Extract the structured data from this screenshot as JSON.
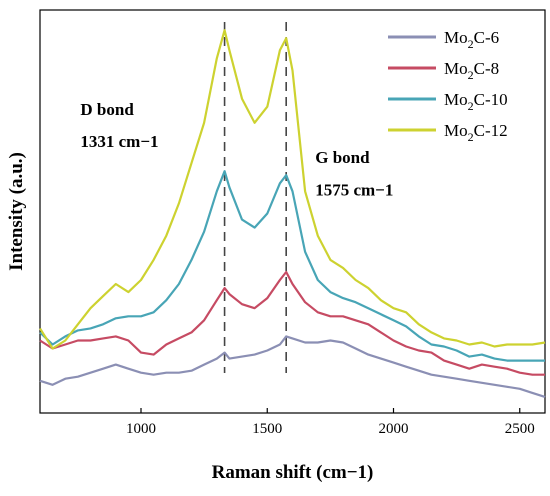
{
  "chart_data": {
    "type": "line",
    "xlabel": "Raman shift (cm−1)",
    "ylabel": "Intensity (a.u.)",
    "xlim": [
      600,
      2600
    ],
    "ylim": [
      0,
      100
    ],
    "xticks": [
      1000,
      1500,
      2000,
      2500
    ],
    "xtick_labels": [
      "1000",
      "1500",
      "2000",
      "2500"
    ],
    "grid": false,
    "legend_position": "top-right",
    "reference_lines": [
      1331,
      1575
    ],
    "annotations": [
      {
        "text": "D bond",
        "x": 760,
        "y": 74
      },
      {
        "text": "1331 cm−1",
        "x": 760,
        "y": 66
      },
      {
        "text": "G bond",
        "x": 1690,
        "y": 62
      },
      {
        "text": "1575 cm−1",
        "x": 1690,
        "y": 54
      }
    ],
    "series": [
      {
        "name": "Mo2C-6",
        "name_base": "Mo",
        "name_sub": "2",
        "name_rest": "C-6",
        "color": "#8b8fb4",
        "x": [
          600,
          650,
          700,
          750,
          800,
          850,
          900,
          950,
          1000,
          1050,
          1100,
          1150,
          1200,
          1250,
          1300,
          1331,
          1350,
          1400,
          1450,
          1500,
          1550,
          1575,
          1600,
          1650,
          1700,
          1750,
          1800,
          1850,
          1900,
          1950,
          2000,
          2050,
          2100,
          2150,
          2200,
          2250,
          2300,
          2350,
          2400,
          2450,
          2500,
          2550,
          2600
        ],
        "y": [
          8,
          7,
          8.5,
          9,
          10,
          11,
          12,
          11,
          10,
          9.5,
          10,
          10,
          10.5,
          12,
          13.5,
          15,
          13.5,
          14,
          14.5,
          15.5,
          17,
          19,
          18.5,
          17.5,
          17.5,
          18,
          17.5,
          16,
          14.5,
          13.5,
          12.5,
          11.5,
          10.5,
          9.5,
          9,
          8.5,
          8,
          7.5,
          7,
          6.5,
          6,
          5,
          4
        ]
      },
      {
        "name": "Mo2C-8",
        "name_base": "Mo",
        "name_sub": "2",
        "name_rest": "C-8",
        "color": "#c64b63",
        "x": [
          600,
          650,
          700,
          750,
          800,
          850,
          900,
          950,
          1000,
          1050,
          1100,
          1150,
          1200,
          1250,
          1300,
          1331,
          1350,
          1400,
          1450,
          1500,
          1550,
          1575,
          1600,
          1650,
          1700,
          1750,
          1800,
          1850,
          1900,
          1950,
          2000,
          2050,
          2100,
          2150,
          2200,
          2250,
          2300,
          2350,
          2400,
          2450,
          2500,
          2550,
          2600
        ],
        "y": [
          18,
          16,
          17,
          18,
          18,
          18.5,
          19,
          18,
          15,
          14.5,
          17,
          18.5,
          20,
          23,
          28,
          31,
          29.5,
          27,
          26,
          28.5,
          33,
          35,
          32,
          27.5,
          25,
          24,
          24,
          23,
          22,
          20,
          18,
          16.5,
          15.5,
          15,
          13,
          12,
          11,
          12,
          11.5,
          11,
          10,
          9.5,
          9.5
        ]
      },
      {
        "name": "Mo2C-10",
        "name_base": "Mo",
        "name_sub": "2",
        "name_rest": "C-10",
        "color": "#48a5b6",
        "x": [
          600,
          650,
          700,
          750,
          800,
          850,
          900,
          950,
          1000,
          1050,
          1100,
          1150,
          1200,
          1250,
          1300,
          1331,
          1350,
          1400,
          1450,
          1500,
          1550,
          1575,
          1600,
          1650,
          1700,
          1750,
          1800,
          1850,
          1900,
          1950,
          2000,
          2050,
          2100,
          2150,
          2200,
          2250,
          2300,
          2350,
          2400,
          2450,
          2500,
          2550,
          2600
        ],
        "y": [
          20,
          17,
          19,
          20.5,
          21,
          22,
          23.5,
          24,
          24,
          25,
          28,
          32,
          38,
          45,
          55,
          60,
          56,
          48,
          46,
          49.5,
          57,
          59,
          55,
          40,
          33,
          30,
          28.5,
          27.5,
          26,
          24.5,
          23,
          21.5,
          19,
          17,
          16.5,
          15.5,
          14,
          14.5,
          13.5,
          13,
          13,
          13,
          13
        ]
      },
      {
        "name": "Mo2C-12",
        "name_base": "Mo",
        "name_sub": "2",
        "name_rest": "C-12",
        "color": "#cdd230",
        "x": [
          600,
          650,
          700,
          750,
          800,
          850,
          900,
          950,
          1000,
          1050,
          1100,
          1150,
          1200,
          1250,
          1300,
          1331,
          1350,
          1400,
          1450,
          1500,
          1550,
          1575,
          1600,
          1650,
          1700,
          1750,
          1800,
          1850,
          1900,
          1950,
          2000,
          2050,
          2100,
          2150,
          2200,
          2250,
          2300,
          2350,
          2400,
          2450,
          2500,
          2550,
          2600
        ],
        "y": [
          21,
          16,
          18,
          22,
          26,
          29,
          32,
          30,
          33,
          38,
          44,
          52,
          62,
          72,
          88,
          95,
          90,
          78,
          72,
          76,
          90,
          93,
          85,
          55,
          44,
          38,
          36,
          33,
          31,
          28,
          26,
          25,
          22,
          20,
          18.5,
          18,
          17,
          17.5,
          16.5,
          17,
          17,
          17,
          17.5
        ]
      }
    ]
  }
}
